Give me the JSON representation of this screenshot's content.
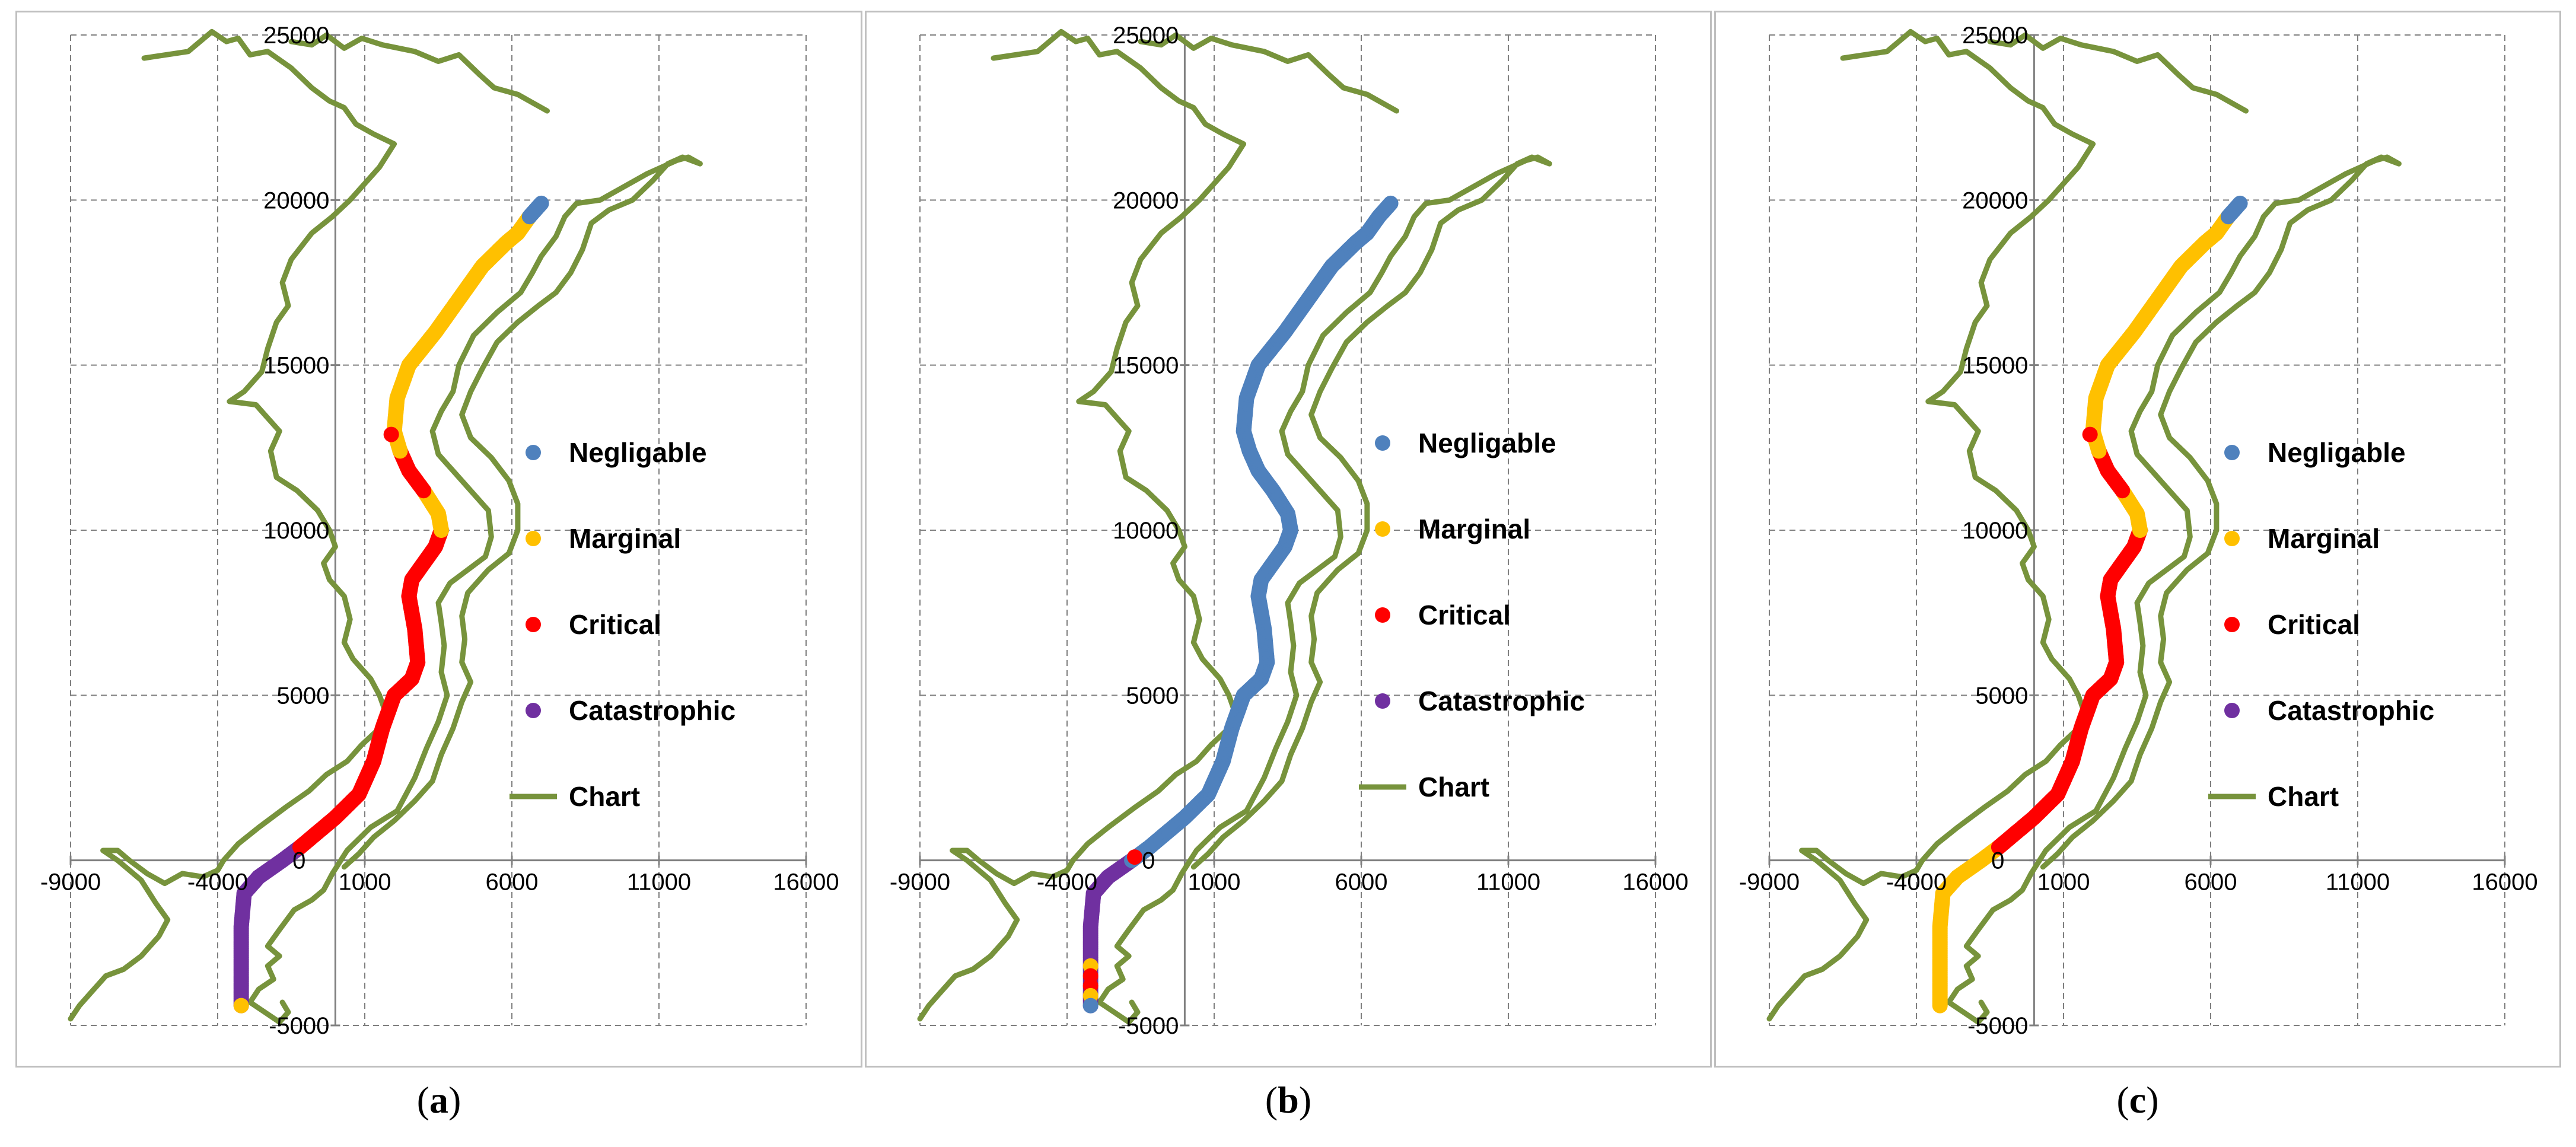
{
  "colors": {
    "Negligable": "#4f81bd",
    "Marginal": "#ffc000",
    "Critical": "#ff0000",
    "Catastrophic": "#7030a0",
    "Chart": "#77933c",
    "grid": "#7f7f7f",
    "axis": "#808080"
  },
  "chart_data": [
    {
      "panel": "a",
      "caption_label": "a",
      "type": "scatter",
      "xlim": [
        -9000,
        16000
      ],
      "ylim": [
        -5000,
        25000
      ],
      "xticks": [
        "-9000",
        "-4000",
        "1000",
        "6000",
        "11000",
        "16000"
      ],
      "yticks": [
        "-5000",
        "0",
        "5000",
        "10000",
        "15000",
        "20000",
        "25000"
      ],
      "legend": [
        "Negligable",
        "Marginal",
        "Critical",
        "Catastrophic",
        "Chart"
      ],
      "legend_position": "right",
      "route_segments": [
        {
          "category": "Catastrophic",
          "from_index": 0,
          "to_index": 6
        },
        {
          "category": "Critical",
          "from_index": 6,
          "to_index": 20
        },
        {
          "category": "Marginal",
          "from_index": 20,
          "to_index": 22
        },
        {
          "category": "Critical",
          "from_index": 22,
          "to_index": 24
        },
        {
          "category": "Marginal",
          "from_index": 24,
          "to_index": 33
        },
        {
          "category": "Negligable",
          "from_index": 33,
          "to_index": 35
        }
      ],
      "markers": [
        {
          "category": "Marginal",
          "x": -3200,
          "y": -4400
        },
        {
          "category": "Critical",
          "x": 1900,
          "y": 12900
        }
      ]
    },
    {
      "panel": "b",
      "caption_label": "b",
      "type": "scatter",
      "xlim": [
        -9000,
        16000
      ],
      "ylim": [
        -5000,
        25000
      ],
      "xticks": [
        "-9000",
        "-4000",
        "1000",
        "6000",
        "11000",
        "16000"
      ],
      "yticks": [
        "-5000",
        "0",
        "5000",
        "10000",
        "15000",
        "20000",
        "25000"
      ],
      "legend": [
        "Negligable",
        "Marginal",
        "Critical",
        "Catastrophic",
        "Chart"
      ],
      "legend_position": "right",
      "route_segments": [
        {
          "category": "Catastrophic",
          "from_index": 0,
          "to_index": 5
        },
        {
          "category": "Negligable",
          "from_index": 5,
          "to_index": 35
        }
      ],
      "markers": [
        {
          "category": "Marginal",
          "x": -3200,
          "y": -3200
        },
        {
          "category": "Critical",
          "x": -3200,
          "y": -3500
        },
        {
          "category": "Critical",
          "x": -3200,
          "y": -3800
        },
        {
          "category": "Marginal",
          "x": -3200,
          "y": -4100
        },
        {
          "category": "Negligable",
          "x": -3200,
          "y": -4400
        },
        {
          "category": "Critical",
          "x": -1700,
          "y": 100
        }
      ]
    },
    {
      "panel": "c",
      "caption_label": "c",
      "type": "scatter",
      "xlim": [
        -9000,
        16000
      ],
      "ylim": [
        -5000,
        25000
      ],
      "xticks": [
        "-9000",
        "-4000",
        "1000",
        "6000",
        "11000",
        "16000"
      ],
      "yticks": [
        "-5000",
        "0",
        "5000",
        "10000",
        "15000",
        "20000",
        "25000"
      ],
      "legend": [
        "Negligable",
        "Marginal",
        "Critical",
        "Catastrophic",
        "Chart"
      ],
      "legend_position": "right",
      "route_segments": [
        {
          "category": "Marginal",
          "from_index": 0,
          "to_index": 6
        },
        {
          "category": "Critical",
          "from_index": 6,
          "to_index": 20
        },
        {
          "category": "Marginal",
          "from_index": 20,
          "to_index": 22
        },
        {
          "category": "Critical",
          "from_index": 22,
          "to_index": 24
        },
        {
          "category": "Marginal",
          "from_index": 24,
          "to_index": 33
        },
        {
          "category": "Negligable",
          "from_index": 33,
          "to_index": 35
        }
      ],
      "markers": [
        {
          "category": "Critical",
          "x": 1900,
          "y": 12900
        }
      ]
    }
  ],
  "route": [
    [
      -3200,
      -4400
    ],
    [
      -3200,
      -3000
    ],
    [
      -3200,
      -2000
    ],
    [
      -3100,
      -1000
    ],
    [
      -2600,
      -500
    ],
    [
      -1800,
      0
    ],
    [
      -1200,
      400
    ],
    [
      0,
      1300
    ],
    [
      800,
      2000
    ],
    [
      1300,
      3000
    ],
    [
      1600,
      4000
    ],
    [
      2000,
      5000
    ],
    [
      2600,
      5500
    ],
    [
      2800,
      6000
    ],
    [
      2700,
      7000
    ],
    [
      2600,
      7500
    ],
    [
      2500,
      8000
    ],
    [
      2600,
      8500
    ],
    [
      3000,
      9000
    ],
    [
      3400,
      9500
    ],
    [
      3600,
      10000
    ],
    [
      3500,
      10500
    ],
    [
      3000,
      11200
    ],
    [
      2500,
      11800
    ],
    [
      2200,
      12400
    ],
    [
      2000,
      13000
    ],
    [
      2100,
      14000
    ],
    [
      2500,
      15000
    ],
    [
      3400,
      16000
    ],
    [
      4200,
      17000
    ],
    [
      5000,
      18000
    ],
    [
      5800,
      18700
    ],
    [
      6200,
      19000
    ],
    [
      6600,
      19500
    ],
    [
      7000,
      19900
    ]
  ],
  "coastline_west": [
    [
      -6500,
      24300
    ],
    [
      -5000,
      24500
    ],
    [
      -4200,
      25100
    ],
    [
      -3700,
      24800
    ],
    [
      -3300,
      24900
    ],
    [
      -2900,
      24400
    ],
    [
      -2300,
      24500
    ],
    [
      -1500,
      24000
    ],
    [
      -800,
      23400
    ],
    [
      -200,
      23000
    ],
    [
      300,
      22800
    ],
    [
      700,
      22300
    ],
    [
      1300,
      22000
    ],
    [
      2000,
      21700
    ],
    [
      1500,
      21000
    ],
    [
      1000,
      20500
    ],
    [
      500,
      20000
    ],
    [
      -100,
      19500
    ],
    [
      -800,
      19000
    ],
    [
      -1500,
      18200
    ],
    [
      -1800,
      17500
    ],
    [
      -1600,
      16800
    ],
    [
      -2000,
      16300
    ],
    [
      -2300,
      15500
    ],
    [
      -2500,
      14800
    ],
    [
      -3100,
      14200
    ],
    [
      -3600,
      13900
    ],
    [
      -2700,
      13800
    ],
    [
      -2300,
      13400
    ],
    [
      -1900,
      13000
    ],
    [
      -2200,
      12400
    ],
    [
      -2000,
      11600
    ],
    [
      -1300,
      11200
    ],
    [
      -600,
      10600
    ],
    [
      -200,
      10000
    ],
    [
      0,
      9500
    ],
    [
      -400,
      9000
    ],
    [
      -200,
      8500
    ],
    [
      300,
      8000
    ],
    [
      500,
      7300
    ],
    [
      300,
      6600
    ],
    [
      600,
      6100
    ],
    [
      1200,
      5500
    ],
    [
      1500,
      5000
    ],
    [
      1700,
      4500
    ],
    [
      1500,
      4000
    ],
    [
      900,
      3500
    ],
    [
      400,
      3000
    ],
    [
      -300,
      2600
    ],
    [
      -900,
      2100
    ],
    [
      -1700,
      1600
    ],
    [
      -2600,
      1000
    ],
    [
      -3300,
      500
    ],
    [
      -3800,
      0
    ],
    [
      -4000,
      -300
    ],
    [
      -4500,
      -500
    ],
    [
      -5200,
      -400
    ],
    [
      -5800,
      -700
    ],
    [
      -6400,
      -400
    ],
    [
      -7000,
      0
    ],
    [
      -7400,
      300
    ],
    [
      -7900,
      300
    ],
    [
      -7400,
      0
    ],
    [
      -6600,
      -600
    ],
    [
      -6100,
      -1300
    ],
    [
      -5700,
      -1800
    ],
    [
      -6000,
      -2300
    ],
    [
      -6600,
      -2900
    ],
    [
      -7200,
      -3300
    ],
    [
      -7800,
      -3500
    ],
    [
      -8300,
      -4000
    ],
    [
      -8700,
      -4400
    ],
    [
      -9000,
      -4800
    ]
  ],
  "coastline_east": [
    [
      -1800,
      -4300
    ],
    [
      -1600,
      -4600
    ],
    [
      -1900,
      -4900
    ],
    [
      -2400,
      -4600
    ],
    [
      -2900,
      -4300
    ],
    [
      -2600,
      -3900
    ],
    [
      -2100,
      -3600
    ],
    [
      -2300,
      -3200
    ],
    [
      -1900,
      -2900
    ],
    [
      -2300,
      -2600
    ],
    [
      -1900,
      -2100
    ],
    [
      -1400,
      -1500
    ],
    [
      -800,
      -1200
    ],
    [
      -400,
      -900
    ],
    [
      -100,
      -400
    ],
    [
      400,
      300
    ],
    [
      1200,
      1000
    ],
    [
      2100,
      1500
    ],
    [
      2700,
      2500
    ],
    [
      3100,
      3400
    ],
    [
      3500,
      4200
    ],
    [
      3800,
      5000
    ],
    [
      3600,
      5700
    ],
    [
      3700,
      6500
    ],
    [
      3600,
      7200
    ],
    [
      3500,
      7800
    ],
    [
      3900,
      8400
    ],
    [
      4500,
      8800
    ],
    [
      5100,
      9200
    ],
    [
      5300,
      9800
    ],
    [
      5200,
      10600
    ],
    [
      4600,
      11200
    ],
    [
      4000,
      11800
    ],
    [
      3500,
      12300
    ],
    [
      3300,
      13000
    ],
    [
      3600,
      13600
    ],
    [
      4000,
      14200
    ],
    [
      4200,
      15000
    ],
    [
      4700,
      15900
    ],
    [
      5500,
      16600
    ],
    [
      6300,
      17200
    ],
    [
      6700,
      17800
    ],
    [
      7000,
      18300
    ],
    [
      7500,
      18900
    ],
    [
      7800,
      19500
    ],
    [
      8200,
      19900
    ],
    [
      9000,
      20000
    ],
    [
      9800,
      20400
    ],
    [
      10600,
      20800
    ],
    [
      11100,
      21000
    ],
    [
      11600,
      21200
    ],
    [
      12000,
      21300
    ],
    [
      12400,
      21100
    ],
    [
      11800,
      21300
    ],
    [
      11300,
      21100
    ],
    [
      10800,
      20600
    ],
    [
      10100,
      20000
    ],
    [
      9300,
      19700
    ],
    [
      8700,
      19300
    ],
    [
      8400,
      18500
    ],
    [
      8000,
      17800
    ],
    [
      7500,
      17200
    ],
    [
      6900,
      16800
    ],
    [
      6200,
      16300
    ],
    [
      5500,
      15700
    ],
    [
      5000,
      14900
    ],
    [
      4600,
      14200
    ],
    [
      4300,
      13500
    ],
    [
      4600,
      12800
    ],
    [
      5300,
      12200
    ],
    [
      5900,
      11500
    ],
    [
      6200,
      10800
    ],
    [
      6200,
      10000
    ],
    [
      5900,
      9300
    ],
    [
      5200,
      8800
    ],
    [
      4500,
      8100
    ],
    [
      4300,
      7400
    ],
    [
      4400,
      6700
    ],
    [
      4300,
      6000
    ],
    [
      4600,
      5400
    ],
    [
      4300,
      4800
    ],
    [
      4000,
      4000
    ],
    [
      3600,
      3200
    ],
    [
      3300,
      2400
    ],
    [
      2700,
      1800
    ],
    [
      2000,
      1200
    ],
    [
      1300,
      700
    ],
    [
      800,
      200
    ],
    [
      300,
      -200
    ]
  ],
  "coastline_north": [
    [
      7200,
      22700
    ],
    [
      6800,
      22900
    ],
    [
      6200,
      23200
    ],
    [
      5400,
      23400
    ],
    [
      4900,
      23800
    ],
    [
      4200,
      24400
    ],
    [
      3500,
      24200
    ],
    [
      2700,
      24500
    ],
    [
      1600,
      24700
    ],
    [
      900,
      24900
    ],
    [
      300,
      24600
    ],
    [
      -300,
      25000
    ],
    [
      -800,
      24700
    ],
    [
      -1500,
      24800
    ]
  ]
}
